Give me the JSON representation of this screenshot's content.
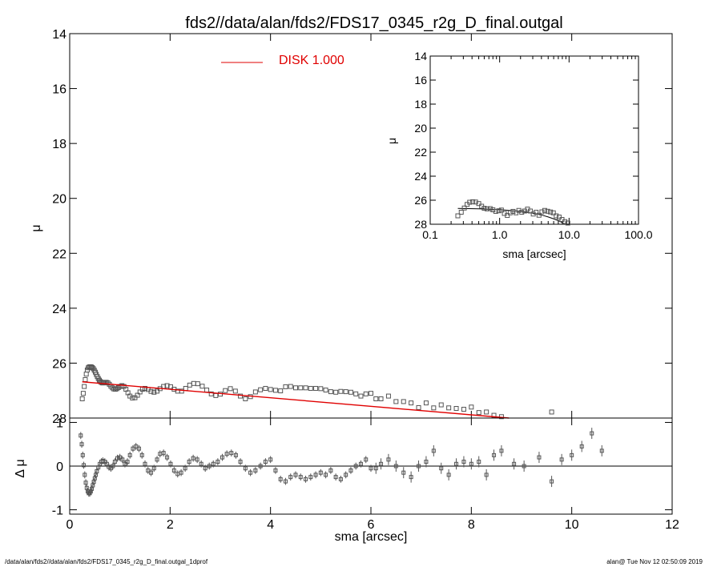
{
  "title": "fds2//data/alan/fds2/FDS17_0345_r2g_D_final.outgal",
  "footer": {
    "left": "/data/alan/fds2//data/alan/fds2/FDS17_0345_r2g_D_final.outgal_1dprof",
    "right": "alan@  Tue Nov 12 02:50:09 2019"
  },
  "colors": {
    "model": "#e00000",
    "data": "#555555",
    "axis": "#000000"
  },
  "chart_data": [
    {
      "id": "main-profile",
      "type": "scatter",
      "xlabel": "sma [arcsec]",
      "ylabel": "μ",
      "xlim": [
        0,
        12
      ],
      "ylim": [
        28,
        14
      ],
      "y_inverted": true,
      "x_ticks": [
        "0",
        "2",
        "4",
        "6",
        "8",
        "10",
        "12"
      ],
      "x_tick_values": [
        0,
        2,
        4,
        6,
        8,
        10,
        12
      ],
      "y_ticks": [
        "14",
        "16",
        "18",
        "20",
        "22",
        "24",
        "26",
        "28"
      ],
      "y_tick_values": [
        14,
        16,
        18,
        20,
        22,
        24,
        26,
        28
      ],
      "legend": {
        "label": "DISK  1.000",
        "position": "top-center",
        "color": "#e00000"
      },
      "series": [
        {
          "name": "DISK  1.000",
          "kind": "line",
          "color": "#e00000",
          "x": [
            0.25,
            8.75
          ],
          "y": [
            26.68,
            28.0
          ]
        },
        {
          "kind": "points",
          "color": "#555555",
          "x": [
            0.25,
            0.27,
            0.29,
            0.31,
            0.33,
            0.35,
            0.37,
            0.39,
            0.41,
            0.43,
            0.45,
            0.47,
            0.49,
            0.51,
            0.53,
            0.55,
            0.57,
            0.59,
            0.61,
            0.63,
            0.65,
            0.67,
            0.69,
            0.71,
            0.73,
            0.76,
            0.79,
            0.82,
            0.85,
            0.88,
            0.91,
            0.94,
            0.97,
            1.0,
            1.04,
            1.08,
            1.12,
            1.16,
            1.2,
            1.25,
            1.3,
            1.35,
            1.4,
            1.45,
            1.5,
            1.56,
            1.62,
            1.68,
            1.74,
            1.8,
            1.87,
            1.94,
            2.01,
            2.08,
            2.15,
            2.23,
            2.31,
            2.39,
            2.47,
            2.55,
            2.64,
            2.73,
            2.82,
            2.91,
            3.0,
            3.1,
            3.2,
            3.3,
            3.4,
            3.5,
            3.6,
            3.7,
            3.8,
            3.9,
            4.0,
            4.1,
            4.2,
            4.3,
            4.4,
            4.5,
            4.6,
            4.7,
            4.8,
            4.9,
            5.0,
            5.1,
            5.2,
            5.3,
            5.4,
            5.5,
            5.6,
            5.7,
            5.8,
            5.9,
            6.0,
            6.1,
            6.2,
            6.35,
            6.5,
            6.65,
            6.8,
            6.95,
            7.1,
            7.25,
            7.4,
            7.55,
            7.7,
            7.85,
            8.0,
            8.15,
            8.3,
            8.45,
            8.6,
            9.6
          ],
          "y": [
            27.3,
            27.1,
            26.85,
            26.6,
            26.4,
            26.25,
            26.17,
            26.14,
            26.13,
            26.14,
            26.16,
            26.2,
            26.26,
            26.33,
            26.41,
            26.49,
            26.56,
            26.62,
            26.67,
            26.7,
            26.72,
            26.72,
            26.71,
            26.7,
            26.7,
            26.72,
            26.77,
            26.84,
            26.9,
            26.94,
            26.95,
            26.93,
            26.89,
            26.85,
            26.82,
            26.85,
            26.95,
            27.08,
            27.2,
            27.27,
            27.26,
            27.17,
            27.05,
            26.95,
            26.92,
            26.96,
            27.03,
            27.06,
            27.02,
            26.93,
            26.85,
            26.82,
            26.86,
            26.95,
            27.02,
            27.02,
            26.92,
            26.8,
            26.74,
            26.75,
            26.84,
            26.98,
            27.12,
            27.18,
            27.13,
            27.0,
            26.93,
            27.02,
            27.2,
            27.3,
            27.22,
            27.05,
            26.97,
            26.92,
            26.96,
            26.99,
            27.01,
            26.86,
            26.85,
            26.9,
            26.9,
            26.9,
            26.92,
            26.92,
            26.93,
            26.98,
            27.04,
            27.06,
            27.03,
            27.04,
            27.06,
            27.12,
            27.2,
            27.12,
            27.1,
            27.3,
            27.3,
            27.2,
            27.4,
            27.4,
            27.45,
            27.62,
            27.45,
            27.63,
            27.52,
            27.63,
            27.65,
            27.68,
            27.6,
            27.8,
            27.78,
            27.9,
            27.95,
            27.78
          ]
        }
      ]
    },
    {
      "id": "inset-log-profile",
      "type": "scatter",
      "xlabel": "sma [arcsec]",
      "ylabel": "μ",
      "x_scale": "log",
      "xlim": [
        0.1,
        100.0
      ],
      "ylim": [
        28,
        14
      ],
      "y_inverted": true,
      "x_ticks": [
        "0.1",
        "1.0",
        "10.0",
        "100.0"
      ],
      "x_tick_values": [
        0.1,
        1.0,
        10.0,
        100.0
      ],
      "y_ticks": [
        "14",
        "16",
        "18",
        "20",
        "22",
        "24",
        "26",
        "28"
      ],
      "y_tick_values": [
        14,
        16,
        18,
        20,
        22,
        24,
        26,
        28
      ],
      "series": [
        {
          "kind": "line",
          "color": "#000000",
          "x": [
            0.25,
            0.5,
            1.0,
            2.0,
            3.0,
            4.0,
            5.0,
            6.0,
            7.0,
            8.0,
            8.75
          ],
          "y": [
            26.68,
            26.72,
            26.78,
            26.93,
            27.08,
            27.23,
            27.39,
            27.55,
            27.7,
            27.86,
            28.0
          ]
        },
        {
          "kind": "points",
          "color": "#555555",
          "x": [
            0.25,
            0.28,
            0.31,
            0.34,
            0.37,
            0.41,
            0.45,
            0.5,
            0.55,
            0.6,
            0.66,
            0.73,
            0.8,
            0.88,
            0.97,
            1.06,
            1.17,
            1.29,
            1.42,
            1.56,
            1.72,
            1.89,
            2.08,
            2.29,
            2.52,
            2.77,
            3.05,
            3.35,
            3.69,
            4.06,
            4.46,
            4.91,
            5.4,
            5.94,
            6.53,
            7.19,
            7.91,
            8.7,
            9.6
          ],
          "y": [
            27.3,
            27.0,
            26.65,
            26.35,
            26.17,
            26.13,
            26.15,
            26.28,
            26.5,
            26.67,
            26.72,
            26.7,
            26.8,
            26.93,
            26.88,
            26.82,
            27.1,
            27.27,
            27.05,
            26.93,
            27.05,
            26.85,
            27.0,
            26.9,
            26.74,
            26.9,
            27.15,
            27.0,
            27.25,
            26.97,
            26.85,
            26.92,
            26.98,
            27.05,
            27.3,
            27.4,
            27.6,
            27.78,
            27.9
          ]
        }
      ]
    },
    {
      "id": "residuals",
      "type": "scatter",
      "xlabel": "sma [arcsec]",
      "ylabel": "Δ μ",
      "xlim": [
        0,
        12
      ],
      "ylim": [
        -1.1,
        1.1
      ],
      "x_ticks": [
        "0",
        "2",
        "4",
        "6",
        "8",
        "10",
        "12"
      ],
      "x_tick_values": [
        0,
        2,
        4,
        6,
        8,
        10,
        12
      ],
      "y_ticks": [
        "-1",
        "0",
        "1"
      ],
      "y_tick_values": [
        -1,
        0,
        1
      ],
      "zero_line": true,
      "series": [
        {
          "kind": "errorbars",
          "color": "#555555",
          "x": [
            0.22,
            0.24,
            0.26,
            0.28,
            0.3,
            0.32,
            0.34,
            0.36,
            0.38,
            0.4,
            0.42,
            0.44,
            0.46,
            0.48,
            0.5,
            0.52,
            0.54,
            0.57,
            0.6,
            0.63,
            0.66,
            0.7,
            0.74,
            0.78,
            0.82,
            0.86,
            0.9,
            0.95,
            1.0,
            1.05,
            1.1,
            1.15,
            1.2,
            1.26,
            1.32,
            1.38,
            1.44,
            1.5,
            1.56,
            1.62,
            1.68,
            1.74,
            1.8,
            1.87,
            1.94,
            2.01,
            2.08,
            2.15,
            2.22,
            2.3,
            2.38,
            2.46,
            2.54,
            2.62,
            2.7,
            2.78,
            2.86,
            2.95,
            3.04,
            3.13,
            3.22,
            3.31,
            3.4,
            3.5,
            3.6,
            3.7,
            3.8,
            3.9,
            4.0,
            4.1,
            4.2,
            4.3,
            4.4,
            4.5,
            4.6,
            4.7,
            4.8,
            4.9,
            5.0,
            5.1,
            5.2,
            5.3,
            5.4,
            5.5,
            5.6,
            5.7,
            5.8,
            5.9,
            6.0,
            6.1,
            6.2,
            6.35,
            6.5,
            6.65,
            6.8,
            6.95,
            7.1,
            7.25,
            7.4,
            7.55,
            7.7,
            7.85,
            8.0,
            8.15,
            8.3,
            8.45,
            8.6,
            8.85,
            9.05,
            9.35,
            9.6,
            9.8,
            10.0,
            10.2,
            10.4,
            10.6
          ],
          "y": [
            0.7,
            0.5,
            0.25,
            0.02,
            -0.2,
            -0.38,
            -0.5,
            -0.58,
            -0.62,
            -0.62,
            -0.58,
            -0.52,
            -0.44,
            -0.36,
            -0.28,
            -0.2,
            -0.12,
            -0.03,
            0.05,
            0.1,
            0.12,
            0.1,
            0.05,
            -0.02,
            -0.05,
            0.0,
            0.1,
            0.18,
            0.2,
            0.15,
            0.05,
            0.1,
            0.25,
            0.4,
            0.45,
            0.4,
            0.25,
            0.05,
            -0.1,
            -0.15,
            -0.05,
            0.15,
            0.28,
            0.3,
            0.2,
            0.05,
            -0.1,
            -0.18,
            -0.15,
            -0.05,
            0.1,
            0.18,
            0.15,
            0.05,
            -0.05,
            0.0,
            0.05,
            0.1,
            0.2,
            0.28,
            0.3,
            0.25,
            0.1,
            -0.05,
            -0.15,
            -0.1,
            0.0,
            0.1,
            0.15,
            -0.1,
            -0.3,
            -0.35,
            -0.25,
            -0.2,
            -0.25,
            -0.3,
            -0.25,
            -0.2,
            -0.15,
            -0.2,
            -0.1,
            -0.25,
            -0.3,
            -0.2,
            -0.1,
            0.0,
            0.05,
            0.15,
            -0.05,
            -0.05,
            0.05,
            0.15,
            0.0,
            -0.15,
            -0.25,
            0.0,
            0.1,
            0.35,
            -0.05,
            -0.2,
            0.05,
            0.1,
            0.05,
            0.1,
            -0.2,
            0.25,
            0.35,
            0.05,
            0.0,
            0.2,
            -0.35,
            0.15,
            0.25,
            0.45,
            0.75,
            0.35
          ],
          "err": 0.08
        }
      ]
    }
  ]
}
